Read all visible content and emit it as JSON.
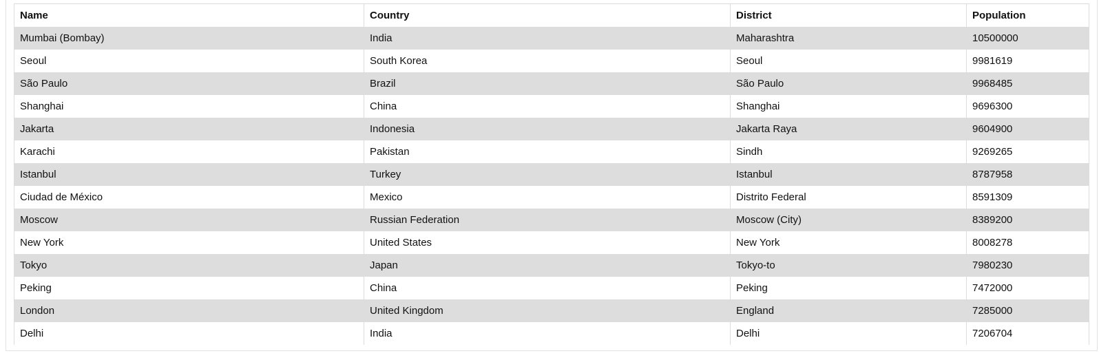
{
  "table": {
    "headers": {
      "name": "Name",
      "country": "Country",
      "district": "District",
      "population": "Population"
    },
    "rows": [
      {
        "name": "Mumbai (Bombay)",
        "country": "India",
        "district": "Maharashtra",
        "population": "10500000"
      },
      {
        "name": "Seoul",
        "country": "South Korea",
        "district": "Seoul",
        "population": "9981619"
      },
      {
        "name": "São Paulo",
        "country": "Brazil",
        "district": "São Paulo",
        "population": "9968485"
      },
      {
        "name": "Shanghai",
        "country": "China",
        "district": "Shanghai",
        "population": "9696300"
      },
      {
        "name": "Jakarta",
        "country": "Indonesia",
        "district": "Jakarta Raya",
        "population": "9604900"
      },
      {
        "name": "Karachi",
        "country": "Pakistan",
        "district": "Sindh",
        "population": "9269265"
      },
      {
        "name": "Istanbul",
        "country": "Turkey",
        "district": "Istanbul",
        "population": "8787958"
      },
      {
        "name": "Ciudad de México",
        "country": "Mexico",
        "district": "Distrito Federal",
        "population": "8591309"
      },
      {
        "name": "Moscow",
        "country": "Russian Federation",
        "district": "Moscow (City)",
        "population": "8389200"
      },
      {
        "name": "New York",
        "country": "United States",
        "district": "New York",
        "population": "8008278"
      },
      {
        "name": "Tokyo",
        "country": "Japan",
        "district": "Tokyo-to",
        "population": "7980230"
      },
      {
        "name": "Peking",
        "country": "China",
        "district": "Peking",
        "population": "7472000"
      },
      {
        "name": "London",
        "country": "United Kingdom",
        "district": "England",
        "population": "7285000"
      },
      {
        "name": "Delhi",
        "country": "India",
        "district": "Delhi",
        "population": "7206704"
      }
    ]
  }
}
